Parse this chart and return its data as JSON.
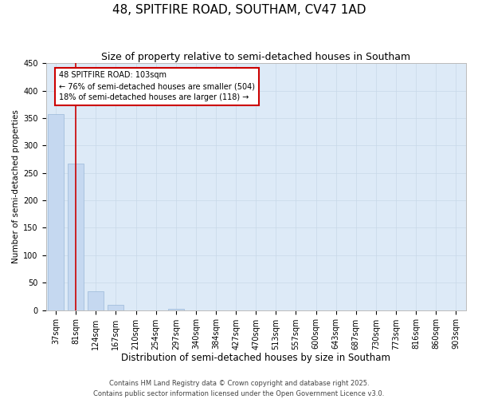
{
  "title": "48, SPITFIRE ROAD, SOUTHAM, CV47 1AD",
  "subtitle": "Size of property relative to semi-detached houses in Southam",
  "xlabel": "Distribution of semi-detached houses by size in Southam",
  "ylabel": "Number of semi-detached properties",
  "bar_values": [
    357,
    267,
    35,
    9,
    0,
    0,
    2,
    0,
    0,
    0,
    0,
    0,
    0,
    0,
    0,
    0,
    0,
    0,
    0,
    0,
    0
  ],
  "bar_labels": [
    "37sqm",
    "81sqm",
    "124sqm",
    "167sqm",
    "210sqm",
    "254sqm",
    "297sqm",
    "340sqm",
    "384sqm",
    "427sqm",
    "470sqm",
    "513sqm",
    "557sqm",
    "600sqm",
    "643sqm",
    "687sqm",
    "730sqm",
    "773sqm",
    "816sqm",
    "860sqm",
    "903sqm"
  ],
  "bar_color": "#c5d8f0",
  "bar_edge_color": "#9ab8d8",
  "property_line_color": "#cc0000",
  "property_sqm": 103,
  "bin_start_sqm": [
    37,
    81,
    124,
    167,
    210,
    254,
    297,
    340,
    384,
    427,
    470,
    513,
    557,
    600,
    643,
    687,
    730,
    773,
    816,
    860,
    903
  ],
  "annotation_text": "48 SPITFIRE ROAD: 103sqm\n← 76% of semi-detached houses are smaller (504)\n18% of semi-detached houses are larger (118) →",
  "annotation_box_color": "#ffffff",
  "annotation_box_edge_color": "#cc0000",
  "ylim": [
    0,
    450
  ],
  "yticks": [
    0,
    50,
    100,
    150,
    200,
    250,
    300,
    350,
    400,
    450
  ],
  "grid_color": "#c8d8e8",
  "bg_color": "#ddeaf7",
  "fig_bg_color": "#ffffff",
  "footer_line1": "Contains HM Land Registry data © Crown copyright and database right 2025.",
  "footer_line2": "Contains public sector information licensed under the Open Government Licence v3.0.",
  "title_fontsize": 11,
  "subtitle_fontsize": 9,
  "xlabel_fontsize": 8.5,
  "ylabel_fontsize": 7.5,
  "tick_fontsize": 7,
  "annotation_fontsize": 7,
  "footer_fontsize": 6
}
